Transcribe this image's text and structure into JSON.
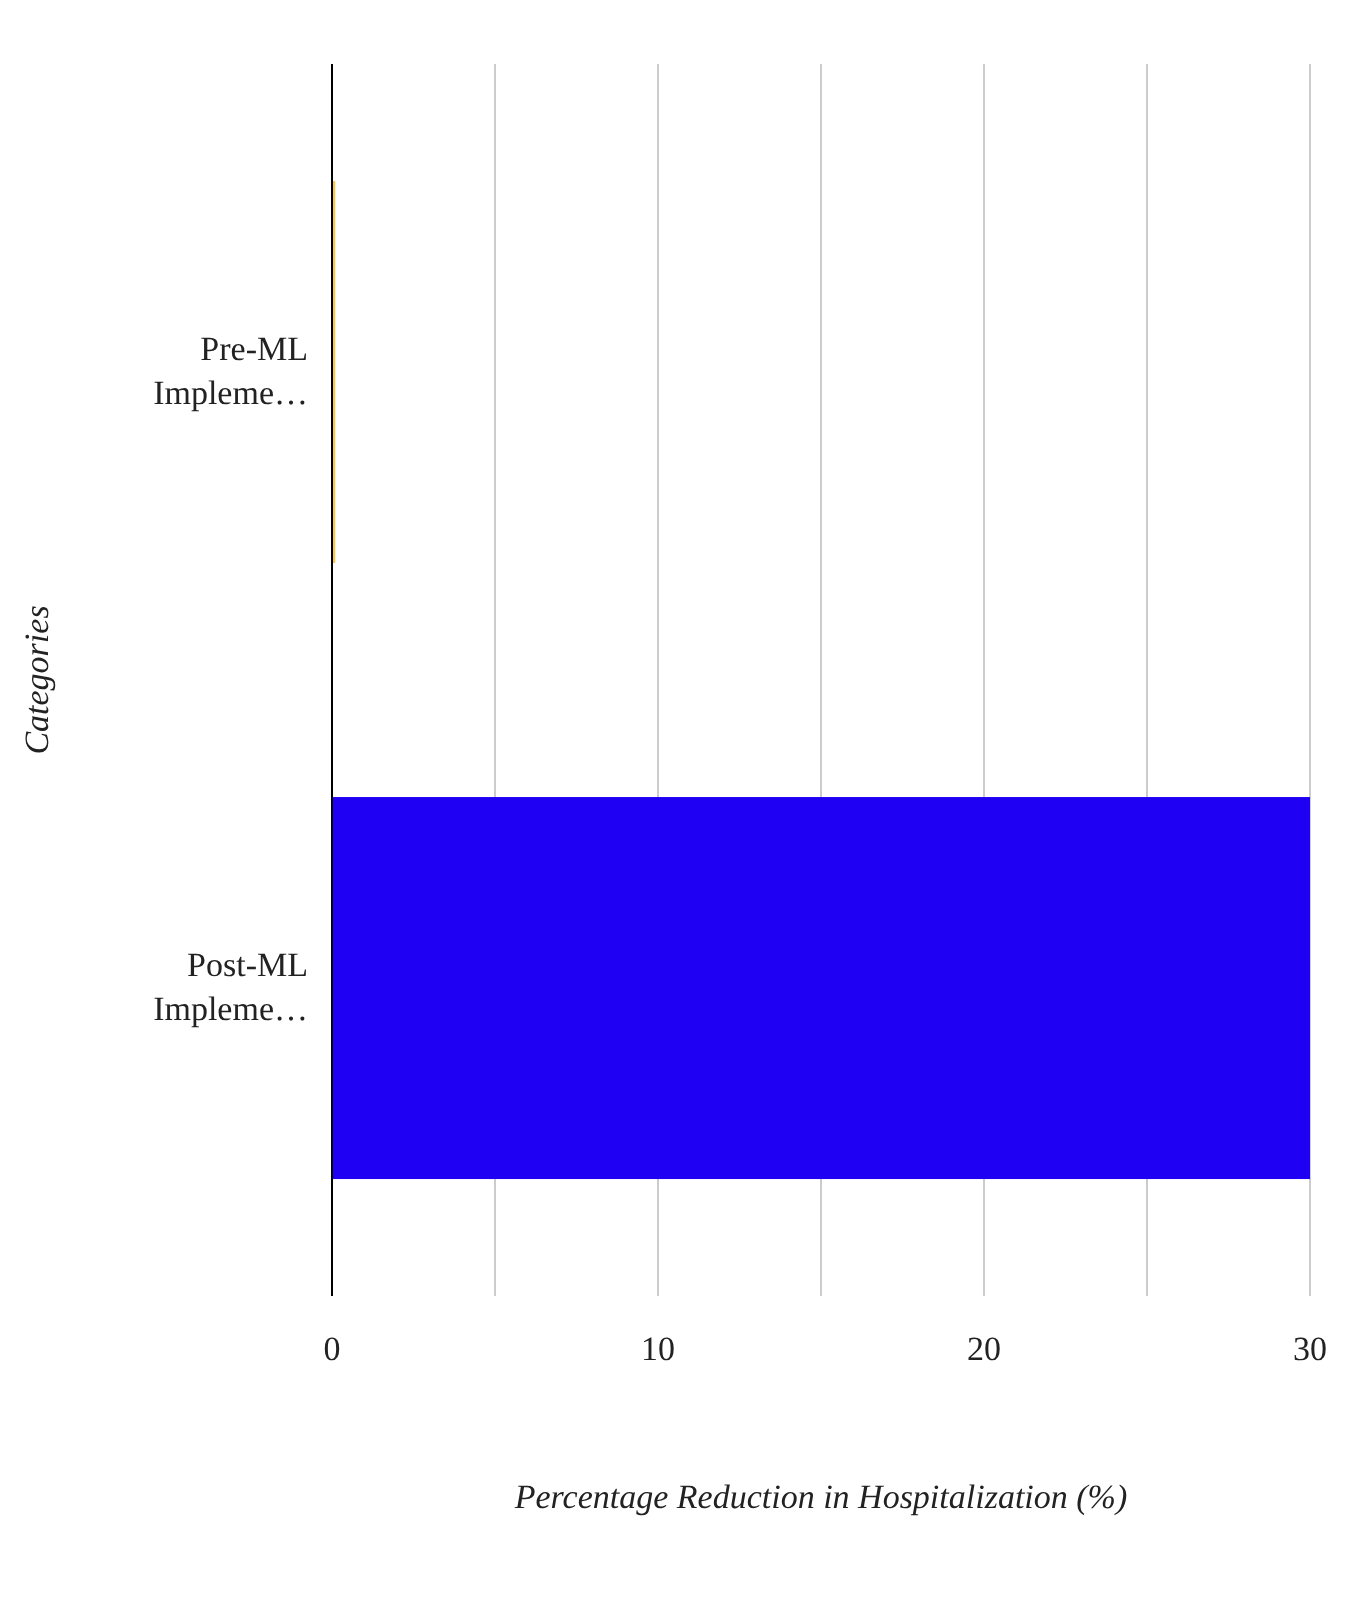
{
  "chart_data": {
    "type": "bar",
    "orientation": "horizontal",
    "categories": [
      "Pre-ML Impleme…",
      "Post-ML Impleme…"
    ],
    "values": [
      0.1,
      30
    ],
    "colors": [
      "#f7c948",
      "#1f00f2"
    ],
    "xlabel": "Percentage Reduction in Hospitalization (%)",
    "ylabel": "Categories",
    "xlim": [
      0,
      30
    ],
    "xticks": [
      0,
      {
        "value": 5,
        "label": null
      },
      10,
      {
        "value": 15,
        "label": null
      },
      20,
      {
        "value": 25,
        "label": null
      },
      30
    ],
    "grid": "x"
  }
}
